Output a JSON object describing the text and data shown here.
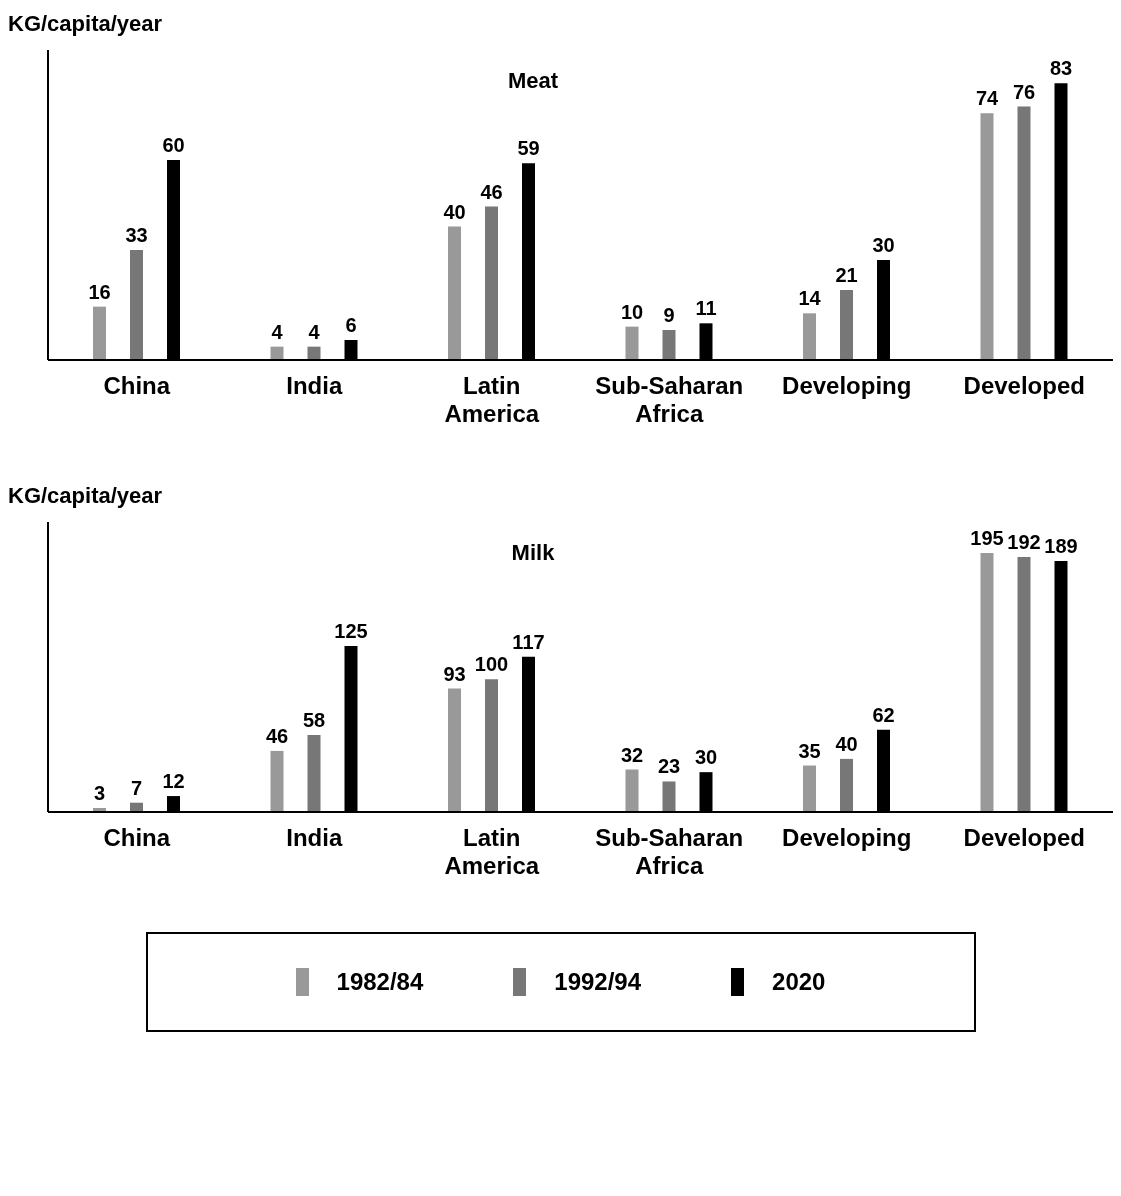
{
  "chart_data": [
    {
      "type": "bar",
      "title": "Meat",
      "ylabel": "KG/capita/year",
      "categories": [
        "China",
        "India",
        "Latin America",
        "Sub-Saharan Africa",
        "Developing",
        "Developed"
      ],
      "series": [
        {
          "color": "#999999",
          "values": [
            16,
            4,
            40,
            10,
            14,
            74
          ]
        },
        {
          "color": "#777777",
          "values": [
            33,
            4,
            46,
            9,
            21,
            76
          ]
        },
        {
          "color": "#000000",
          "values": [
            60,
            6,
            59,
            11,
            30,
            83
          ]
        }
      ],
      "data_labels": true,
      "grid": false,
      "legend": false
    },
    {
      "type": "bar",
      "title": "Milk",
      "ylabel": "KG/capita/year",
      "categories": [
        "China",
        "India",
        "Latin America",
        "Sub-Saharan Africa",
        "Developing",
        "Developed"
      ],
      "series": [
        {
          "name": "1982/84",
          "color": "#999999",
          "values": [
            3,
            46,
            93,
            32,
            35,
            195
          ]
        },
        {
          "name": "1992/94",
          "color": "#777777",
          "values": [
            7,
            58,
            100,
            23,
            40,
            192
          ]
        },
        {
          "name": "2020",
          "color": "#000000",
          "values": [
            12,
            125,
            117,
            30,
            62,
            189
          ]
        }
      ],
      "data_labels": true,
      "grid": false,
      "legend": "bottom"
    }
  ]
}
